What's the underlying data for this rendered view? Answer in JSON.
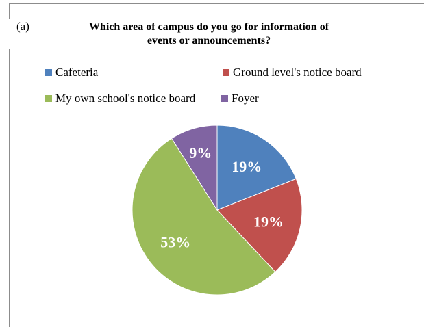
{
  "panel_label": "(a)",
  "chart_data": {
    "type": "pie",
    "title": "Which area of campus do you go for information of events or announcements?",
    "title_lines": [
      "Which area of campus do you go for information of",
      "events or announcements?"
    ],
    "legend_position": "top",
    "slices": [
      {
        "name": "Cafeteria",
        "value": 19,
        "label": "19%",
        "color": "#4f81bd"
      },
      {
        "name": "Ground level's notice board",
        "value": 19,
        "label": "19%",
        "color": "#c0504d"
      },
      {
        "name": "My own school's notice board",
        "value": 53,
        "label": "53%",
        "color": "#9bbb59"
      },
      {
        "name": "Foyer",
        "value": 9,
        "label": "9%",
        "color": "#8064a2"
      }
    ]
  }
}
